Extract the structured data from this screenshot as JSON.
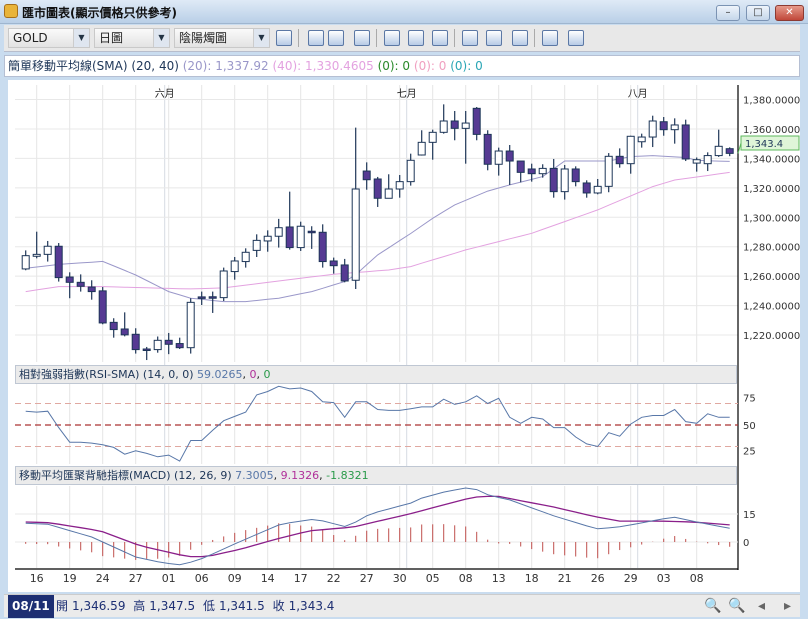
{
  "window": {
    "title": "匯市圖表(顯示價格只供參考)",
    "minimize": "–",
    "maximize": "□",
    "close": "✕"
  },
  "toolbar": {
    "symbol": "GOLD",
    "period": "日圖",
    "chart_type": "陰陽燭圖",
    "icons": [
      "save-icon",
      "cursor-icon",
      "chart-style-icon",
      "data-table-icon",
      "line-study-icon",
      "indicator-icon",
      "text-annotation-icon",
      "zoom-icon",
      "export-icon",
      "grid-icon",
      "window-icon",
      "layout-icon"
    ]
  },
  "sma_legend": {
    "name": "簡單移動平均線(SMA) (20, 40)",
    "p20_label": "(20):",
    "p20_value": "1,337.92",
    "p40_label": "(40):",
    "p40_value": "1,330.4605",
    "z1": "(0): 0",
    "z2": "(0): 0",
    "z3": "(0): 0",
    "colors": {
      "p20": "#9a97c9",
      "p40": "#e3a2e0",
      "z1": "#2a8a2a",
      "z2": "#f0a0c0",
      "z3": "#2aa6b5"
    }
  },
  "rsi_legend": {
    "name": "相對強弱指數(RSI-SMA) (14, 0, 0)",
    "v1": "59.0265",
    "v2": "0",
    "v3": "0"
  },
  "macd_legend": {
    "name": "移動平均匯聚背馳指標(MACD) (12, 26, 9)",
    "v1": "7.3005",
    "v2": "9.1326",
    "v3": "-1.8321"
  },
  "status": {
    "date": "08/11",
    "open_label": "開",
    "open": "1,346.59",
    "high_label": "高",
    "high": "1,347.5",
    "low_label": "低",
    "low": "1,341.5",
    "close_label": "收",
    "close": "1,343.4"
  },
  "chart_data": {
    "type": "candlestick",
    "months": [
      {
        "label": "六月",
        "index": 13
      },
      {
        "label": "七月",
        "index": 35
      },
      {
        "label": "八月",
        "index": 56
      }
    ],
    "x_labels": [
      "16",
      "19",
      "24",
      "27",
      "01",
      "06",
      "09",
      "14",
      "17",
      "22",
      "27",
      "30",
      "05",
      "08",
      "13",
      "18",
      "21",
      "26",
      "29",
      "03",
      "08"
    ],
    "x_label_start_index": 1,
    "x_label_step": 3,
    "price_axis": {
      "ticks": [
        "1,220.0000",
        "1,240.0000",
        "1,260.0000",
        "1,280.0000",
        "1,300.0000",
        "1,320.0000",
        "1,340.0000",
        "1,360.0000",
        "1,380.0000"
      ],
      "tick_values": [
        1220,
        1240,
        1260,
        1280,
        1300,
        1320,
        1340,
        1360,
        1380
      ],
      "last_price": "1,343.4",
      "last_value": 1343.4
    },
    "colors": {
      "up_fill": "#ffffff",
      "down_fill": "#563a93",
      "outline": "#1d3557",
      "sma20": "#9a97c9",
      "sma40": "#e3a2e0",
      "rsi": "#5877a8",
      "macd": "#5877a8",
      "signal": "#8a1f8a",
      "hist": "#c0504d"
    },
    "ohlc": [
      [
        1264.9,
        1277.5,
        1264.0,
        1273.9
      ],
      [
        1273.5,
        1290.2,
        1272.1,
        1274.8
      ],
      [
        1274.8,
        1283.9,
        1269.9,
        1280.3
      ],
      [
        1280.3,
        1282.5,
        1256.3,
        1259.0
      ],
      [
        1259.4,
        1262.6,
        1245.0,
        1255.8
      ],
      [
        1255.8,
        1261.2,
        1249.5,
        1253.1
      ],
      [
        1252.6,
        1257.2,
        1244.0,
        1249.5
      ],
      [
        1250.0,
        1252.6,
        1227.3,
        1228.2
      ],
      [
        1228.6,
        1231.4,
        1218.2,
        1223.7
      ],
      [
        1224.1,
        1235.4,
        1219.1,
        1220.1
      ],
      [
        1220.5,
        1224.6,
        1207.4,
        1210.1
      ],
      [
        1210.5,
        1211.9,
        1203.0,
        1210.0
      ],
      [
        1210.1,
        1219.0,
        1208.0,
        1216.4
      ],
      [
        1216.4,
        1221.4,
        1207.0,
        1213.7
      ],
      [
        1214.2,
        1218.2,
        1210.5,
        1211.4
      ],
      [
        1211.4,
        1245.0,
        1207.4,
        1242.2
      ],
      [
        1245.9,
        1249.5,
        1240.4,
        1245.4
      ],
      [
        1246.0,
        1249.5,
        1235.0,
        1245.6
      ],
      [
        1245.4,
        1265.8,
        1243.1,
        1263.5
      ],
      [
        1263.1,
        1273.0,
        1257.6,
        1270.3
      ],
      [
        1269.9,
        1278.9,
        1265.8,
        1276.2
      ],
      [
        1277.5,
        1288.4,
        1273.0,
        1284.3
      ],
      [
        1283.9,
        1291.1,
        1276.6,
        1287.1
      ],
      [
        1287.1,
        1298.9,
        1279.4,
        1292.9
      ],
      [
        1293.4,
        1317.4,
        1278.0,
        1279.4
      ],
      [
        1279.4,
        1297.0,
        1277.1,
        1293.9
      ],
      [
        1290.5,
        1293.9,
        1278.5,
        1289.6
      ],
      [
        1289.8,
        1295.2,
        1265.8,
        1269.9
      ],
      [
        1270.3,
        1272.6,
        1261.7,
        1267.1
      ],
      [
        1267.6,
        1271.7,
        1255.8,
        1256.7
      ],
      [
        1257.2,
        1360.9,
        1251.3,
        1319.2
      ],
      [
        1331.4,
        1337.3,
        1318.7,
        1325.5
      ],
      [
        1326.0,
        1327.4,
        1307.0,
        1312.9
      ],
      [
        1312.9,
        1329.2,
        1312.9,
        1319.2
      ],
      [
        1319.2,
        1328.7,
        1313.3,
        1324.2
      ],
      [
        1324.2,
        1343.2,
        1321.5,
        1338.7
      ],
      [
        1342.3,
        1359.1,
        1341.9,
        1350.9
      ],
      [
        1350.9,
        1359.5,
        1339.1,
        1357.7
      ],
      [
        1357.7,
        1376.7,
        1356.8,
        1365.4
      ],
      [
        1365.4,
        1372.2,
        1352.3,
        1360.4
      ],
      [
        1360.4,
        1372.2,
        1336.4,
        1364.0
      ],
      [
        1374.0,
        1374.9,
        1352.3,
        1356.3
      ],
      [
        1356.3,
        1359.1,
        1331.9,
        1336.0
      ],
      [
        1336.0,
        1347.3,
        1328.3,
        1345.0
      ],
      [
        1345.0,
        1349.1,
        1321.9,
        1338.2
      ],
      [
        1338.2,
        1338.2,
        1323.7,
        1330.5
      ],
      [
        1332.8,
        1336.4,
        1324.2,
        1329.6
      ],
      [
        1329.6,
        1336.0,
        1326.9,
        1333.2
      ],
      [
        1333.2,
        1339.6,
        1313.3,
        1317.4
      ],
      [
        1317.4,
        1335.5,
        1312.0,
        1332.8
      ],
      [
        1332.8,
        1334.6,
        1321.0,
        1324.2
      ],
      [
        1323.3,
        1325.1,
        1313.3,
        1316.5
      ],
      [
        1316.5,
        1326.0,
        1315.6,
        1321.0
      ],
      [
        1321.0,
        1343.6,
        1317.0,
        1341.4
      ],
      [
        1341.4,
        1346.8,
        1333.7,
        1336.4
      ],
      [
        1336.4,
        1355.4,
        1329.6,
        1355.0
      ],
      [
        1351.3,
        1356.8,
        1347.3,
        1354.5
      ],
      [
        1354.5,
        1369.0,
        1347.7,
        1365.4
      ],
      [
        1364.9,
        1368.1,
        1355.4,
        1359.5
      ],
      [
        1359.5,
        1367.2,
        1350.0,
        1362.7
      ],
      [
        1362.7,
        1366.3,
        1338.2,
        1339.6
      ],
      [
        1336.8,
        1340.6,
        1331.0,
        1339.1
      ],
      [
        1336.4,
        1344.1,
        1331.4,
        1341.9
      ],
      [
        1341.9,
        1359.5,
        1341.0,
        1348.2
      ],
      [
        1346.59,
        1347.5,
        1341.5,
        1343.4
      ]
    ],
    "sma20_points": [
      [
        1,
        1265.3
      ],
      [
        4,
        1268
      ],
      [
        8,
        1270
      ],
      [
        11,
        1260.8
      ],
      [
        14,
        1249.5
      ],
      [
        16,
        1245
      ],
      [
        19,
        1242.7
      ],
      [
        21,
        1242.7
      ],
      [
        24,
        1245
      ],
      [
        27,
        1249.5
      ],
      [
        30,
        1256.3
      ],
      [
        31,
        1261
      ],
      [
        33,
        1274.4
      ],
      [
        36,
        1289
      ],
      [
        38,
        1299.3
      ],
      [
        40,
        1308.4
      ],
      [
        43,
        1317.8
      ],
      [
        45,
        1322
      ],
      [
        48,
        1327.6
      ],
      [
        50,
        1338.2
      ],
      [
        54,
        1338.2
      ],
      [
        56,
        1341.2
      ],
      [
        58,
        1341.9
      ],
      [
        61,
        1340.6
      ],
      [
        62,
        1338.7
      ],
      [
        65,
        1337.92
      ]
    ],
    "sma40_points": [
      [
        1,
        1249.5
      ],
      [
        4,
        1252.9
      ],
      [
        8,
        1252.9
      ],
      [
        16,
        1251.3
      ],
      [
        19,
        1252
      ],
      [
        24,
        1256.7
      ],
      [
        29,
        1261.3
      ],
      [
        34,
        1264.2
      ],
      [
        36,
        1266.5
      ],
      [
        41,
        1277.8
      ],
      [
        47,
        1289.1
      ],
      [
        53,
        1305
      ],
      [
        58,
        1320.8
      ],
      [
        60,
        1325.3
      ],
      [
        65,
        1330.46
      ]
    ],
    "rsi": {
      "levels": [
        75,
        50,
        25
      ],
      "values": [
        66,
        65,
        66,
        47,
        30,
        30,
        29,
        27,
        24,
        16,
        20,
        17,
        13,
        15,
        8,
        32,
        32,
        44,
        55,
        60,
        65,
        85,
        89,
        95,
        92,
        93,
        89,
        77,
        76,
        59,
        77,
        77,
        68,
        67,
        67,
        69,
        71,
        71,
        80,
        74,
        77,
        84,
        75,
        81,
        59,
        52,
        59,
        57,
        47,
        47,
        36,
        28,
        25,
        41,
        37,
        51,
        59,
        61,
        61,
        68,
        54,
        52,
        63,
        59,
        59.03
      ]
    },
    "macd": {
      "ticks": [
        "15",
        "0"
      ],
      "tick_values": [
        15,
        0
      ],
      "macd_points": [
        [
          1,
          10
        ],
        [
          3,
          9.5
        ],
        [
          7,
          2.7
        ],
        [
          11,
          -8
        ],
        [
          13.3,
          -11
        ],
        [
          15.2,
          -12.3
        ],
        [
          17.2,
          -8.5
        ],
        [
          20.2,
          -0.5
        ],
        [
          24.2,
          9.6
        ],
        [
          27.3,
          12.3
        ],
        [
          30.2,
          8
        ],
        [
          32.3,
          15
        ],
        [
          36,
          20.8
        ],
        [
          36.7,
          23
        ],
        [
          39,
          26.7
        ],
        [
          41.1,
          29
        ],
        [
          42,
          28
        ],
        [
          43.1,
          25
        ],
        [
          45,
          22.5
        ],
        [
          49,
          14
        ],
        [
          52.9,
          7
        ],
        [
          54.9,
          8
        ],
        [
          56.8,
          10
        ],
        [
          59.9,
          13.4
        ],
        [
          62,
          10.7
        ],
        [
          65,
          7.3
        ]
      ],
      "signal_points": [
        [
          1,
          10.7
        ],
        [
          3.2,
          10.3
        ],
        [
          7.8,
          5.9
        ],
        [
          11.4,
          -2
        ],
        [
          15.7,
          -7.8
        ],
        [
          17.5,
          -7.8
        ],
        [
          20.5,
          -3.9
        ],
        [
          23.8,
          1.6
        ],
        [
          26.8,
          6
        ],
        [
          30.8,
          8
        ],
        [
          36,
          15.2
        ],
        [
          41.7,
          24
        ],
        [
          43.8,
          24.6
        ],
        [
          49,
          18.7
        ],
        [
          52.9,
          13.4
        ],
        [
          55,
          11.2
        ],
        [
          58.6,
          11.2
        ],
        [
          61.7,
          10.7
        ],
        [
          65,
          9.13
        ]
      ]
    }
  }
}
